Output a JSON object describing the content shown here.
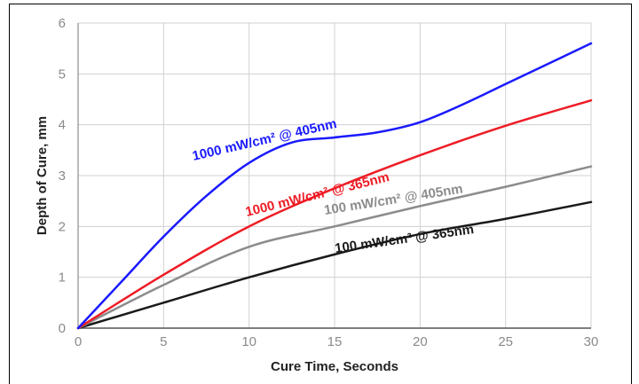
{
  "chart_data": {
    "type": "line",
    "xlabel": "Cure Time, Seconds",
    "ylabel": "Depth of Cure, mm",
    "xlim": [
      0,
      30
    ],
    "ylim": [
      0,
      6
    ],
    "xticks": [
      0,
      5,
      10,
      15,
      20,
      25,
      30
    ],
    "yticks": [
      0,
      1,
      2,
      3,
      4,
      5,
      6
    ],
    "grid": true,
    "legend": "none",
    "series": [
      {
        "name": "1000 mW/cm² @ 405nm",
        "color": "#1a1aff",
        "x": [
          0,
          2.5,
          5,
          7.5,
          10,
          12.5,
          15,
          17.5,
          20,
          22.5,
          25,
          27.5,
          30
        ],
        "y": [
          0,
          0.9,
          1.8,
          2.6,
          3.25,
          3.65,
          3.75,
          3.85,
          4.05,
          4.4,
          4.8,
          5.2,
          5.6
        ]
      },
      {
        "name": "1000 mW/cm² @ 365nm",
        "color": "#ee1c25",
        "x": [
          0,
          5,
          10,
          15,
          20,
          25,
          30
        ],
        "y": [
          0,
          1.05,
          2.0,
          2.75,
          3.4,
          3.98,
          4.48
        ]
      },
      {
        "name": "100 mW/cm² @ 405nm",
        "color": "#8c8c8c",
        "x": [
          0,
          5,
          10,
          15,
          20,
          25,
          30
        ],
        "y": [
          0,
          0.85,
          1.6,
          2.0,
          2.4,
          2.78,
          3.18
        ]
      },
      {
        "name": "100 mW/cm² @ 365nm",
        "color": "#1a1a1a",
        "x": [
          0,
          5,
          10,
          15,
          20,
          25,
          30
        ],
        "y": [
          0,
          0.5,
          1.0,
          1.45,
          1.85,
          2.15,
          2.48
        ]
      }
    ]
  }
}
